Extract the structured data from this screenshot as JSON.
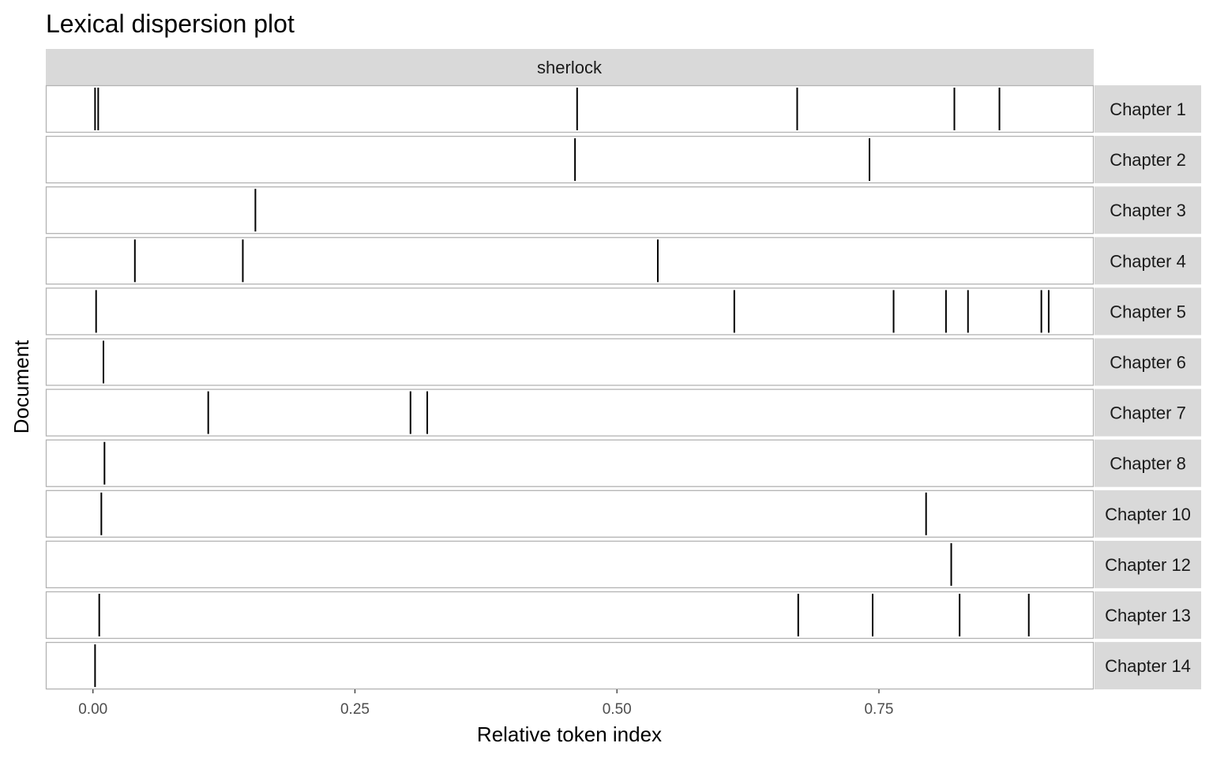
{
  "chart_data": {
    "type": "lexical-dispersion",
    "title": "Lexical dispersion plot",
    "facet_label": "sherlock",
    "xlabel": "Relative token index",
    "ylabel": "Document",
    "xlim": [
      -0.045,
      0.955
    ],
    "x_ticks": [
      {
        "value": 0.0,
        "label": "0.00"
      },
      {
        "value": 0.25,
        "label": "0.25"
      },
      {
        "value": 0.5,
        "label": "0.50"
      },
      {
        "value": 0.75,
        "label": "0.75"
      }
    ],
    "grid": false,
    "documents": [
      {
        "name": "Chapter 1",
        "positions": [
          0.002,
          0.005,
          0.462,
          0.672,
          0.822,
          0.865
        ]
      },
      {
        "name": "Chapter 2",
        "positions": [
          0.46,
          0.741
        ]
      },
      {
        "name": "Chapter 3",
        "positions": [
          0.155
        ]
      },
      {
        "name": "Chapter 4",
        "positions": [
          0.04,
          0.143,
          0.539
        ]
      },
      {
        "name": "Chapter 5",
        "positions": [
          0.003,
          0.612,
          0.764,
          0.814,
          0.835,
          0.905,
          0.912
        ]
      },
      {
        "name": "Chapter 6",
        "positions": [
          0.01
        ]
      },
      {
        "name": "Chapter 7",
        "positions": [
          0.11,
          0.303,
          0.319
        ]
      },
      {
        "name": "Chapter 8",
        "positions": [
          0.011
        ]
      },
      {
        "name": "Chapter 10",
        "positions": [
          0.008,
          0.795
        ]
      },
      {
        "name": "Chapter 12",
        "positions": [
          0.819
        ]
      },
      {
        "name": "Chapter 13",
        "positions": [
          0.006,
          0.673,
          0.744,
          0.827,
          0.893
        ]
      },
      {
        "name": "Chapter 14",
        "positions": [
          0.002
        ]
      }
    ],
    "colors": {
      "strip_fill": "#d9d9d9",
      "panel_border": "#b3b3b3",
      "mark": "#000000",
      "tick_text": "#4d4d4d"
    }
  }
}
